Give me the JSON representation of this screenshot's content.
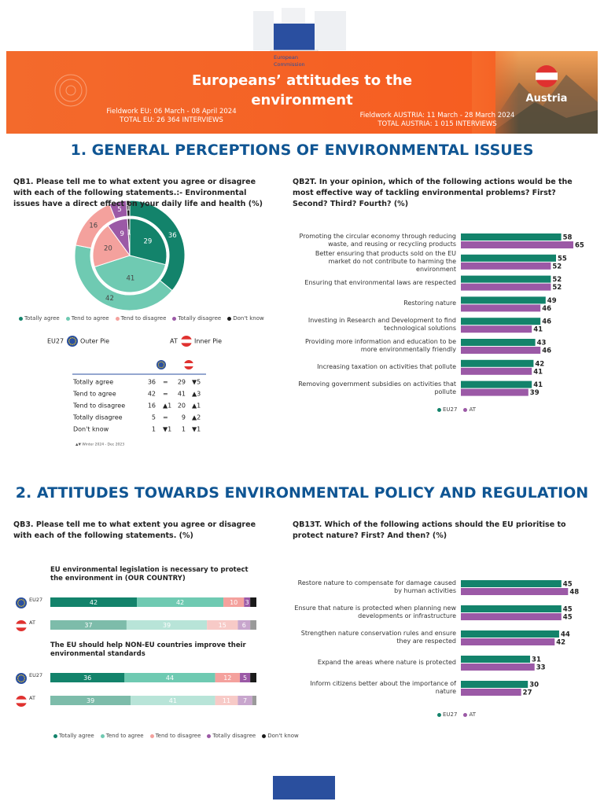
{
  "header": {
    "logo": [
      "European",
      "Commission"
    ],
    "title": "Europeans’ attitudes to the environment",
    "fieldwork_eu": "Fieldwork EU: 06 March - 08 April 2024",
    "total_eu": "TOTAL EU: 26 364 INTERVIEWS",
    "fieldwork_country": "Fieldwork AUSTRIA: 11 March - 28 March 2024",
    "total_country": "TOTAL AUSTRIA: 1 015 INTERVIEWS",
    "country": "Austria"
  },
  "sections": [
    "1. GENERAL PERCEPTIONS OF ENVIRONMENTAL ISSUES",
    "2. ATTITUDES TOWARDS ENVIRONMENTAL POLICY AND REGULATION"
  ],
  "chart_data": [
    {
      "type": "pie",
      "title": "QB1. Please tell me to what extent you agree or disagree with each of the following statements.:- Environmental issues have a direct effect on your daily life and health (%)",
      "categories": [
        "Totally agree",
        "Tend to agree",
        "Tend to disagree",
        "Totally disagree",
        "Don't know"
      ],
      "colors": [
        "#13836b",
        "#6fcab2",
        "#f4a19d",
        "#9b59a6",
        "#1a1a1a"
      ],
      "series": [
        {
          "name": "EU27",
          "ring": "Outer Pie",
          "values": [
            36,
            42,
            16,
            5,
            1
          ]
        },
        {
          "name": "AT",
          "ring": "Inner Pie",
          "values": [
            29,
            41,
            20,
            9,
            1
          ]
        }
      ]
    },
    {
      "type": "bar",
      "title": "QB2T. In your opinion, which of the following actions would be the most effective way of tackling environmental problems? First? Second? Third? Fourth? (%)",
      "categories": [
        "Promoting the circular economy through reducing waste, and reusing or recycling products",
        "Better ensuring that products sold on the EU market do not contribute to harming the environment",
        "Ensuring that environmental laws are respected",
        "Restoring nature",
        "Investing in Research and Development to find technological solutions",
        "Providing more information and education to be more environmentally friendly",
        "Increasing taxation on activities that pollute",
        "Removing government subsidies on activities that pollute"
      ],
      "series": [
        {
          "name": "EU27",
          "color": "#13836b",
          "values": [
            58,
            55,
            52,
            49,
            46,
            43,
            42,
            41
          ]
        },
        {
          "name": "AT",
          "color": "#9b59a6",
          "values": [
            65,
            52,
            52,
            46,
            41,
            46,
            41,
            39
          ]
        }
      ]
    },
    {
      "type": "stacked-bar",
      "title": "QB3. Please tell me to what extent you agree or disagree with each of the following statements. (%)",
      "categories": [
        "Totally agree",
        "Tend to agree",
        "Tend to disagree",
        "Totally disagree",
        "Don't know"
      ],
      "colors": [
        "#13836b",
        "#6fcab2",
        "#f4a19d",
        "#9b59a6",
        "#1a1a1a"
      ],
      "groups": [
        {
          "title": "EU environmental legislation is necessary to protect the environment in (OUR COUNTRY)",
          "series": [
            {
              "name": "EU27",
              "colors": [
                "#13836b",
                "#6fcab2",
                "#f4a19d",
                "#9b59a6",
                "#1a1a1a"
              ],
              "values": [
                42,
                42,
                10,
                3,
                3
              ],
              "value_labels": [
                "42",
                "42",
                "10",
                "3",
                null
              ]
            },
            {
              "name": "AT",
              "colors": [
                "#7dbcaa",
                "#b8e4d8",
                "#f7cac7",
                "#c8a6cd",
                "#9a9a9a"
              ],
              "values": [
                37,
                39,
                15,
                6,
                3
              ],
              "value_labels": [
                "37",
                "39",
                "15",
                "6",
                null
              ]
            }
          ]
        },
        {
          "title": "The EU should help NON-EU countries improve their environmental standards",
          "series": [
            {
              "name": "EU27",
              "colors": [
                "#13836b",
                "#6fcab2",
                "#f4a19d",
                "#9b59a6",
                "#1a1a1a"
              ],
              "values": [
                36,
                44,
                12,
                5,
                3
              ],
              "value_labels": [
                "36",
                "44",
                "12",
                "5",
                null
              ]
            },
            {
              "name": "AT",
              "colors": [
                "#7dbcaa",
                "#b8e4d8",
                "#f7cac7",
                "#c8a6cd",
                "#9a9a9a"
              ],
              "values": [
                39,
                41,
                11,
                7,
                2
              ],
              "value_labels": [
                "39",
                "41",
                "11",
                "7",
                null
              ]
            }
          ]
        }
      ]
    },
    {
      "type": "bar",
      "title": "QB13T. Which of the following actions should the EU prioritise to protect nature? First? And then? (%)",
      "categories": [
        "Restore nature to compensate for damage caused by human activities",
        "Ensure that nature is protected when planning new developments or infrastructure",
        "Strengthen nature conservation rules and ensure they are respected",
        "Expand the areas where nature is protected",
        "Inform citizens better about the importance of nature"
      ],
      "series": [
        {
          "name": "EU27",
          "color": "#13836b",
          "values": [
            45,
            45,
            44,
            31,
            30
          ]
        },
        {
          "name": "AT",
          "color": "#9b59a6",
          "values": [
            48,
            45,
            42,
            33,
            27
          ]
        }
      ]
    }
  ],
  "table": {
    "rows": [
      [
        "Totally agree",
        "36",
        "=",
        "29",
        "▼5"
      ],
      [
        "Tend to agree",
        "42",
        "=",
        "41",
        "▲3"
      ],
      [
        "Tend to disagree",
        "16",
        "▲1",
        "20",
        "▲1"
      ],
      [
        "Totally disagree",
        "5",
        "=",
        "9",
        "▲2"
      ],
      [
        "Don't know",
        "1",
        "▼1",
        "1",
        "▼1"
      ]
    ],
    "note": "▲▼ Winter 2024 - Dec 2023"
  }
}
